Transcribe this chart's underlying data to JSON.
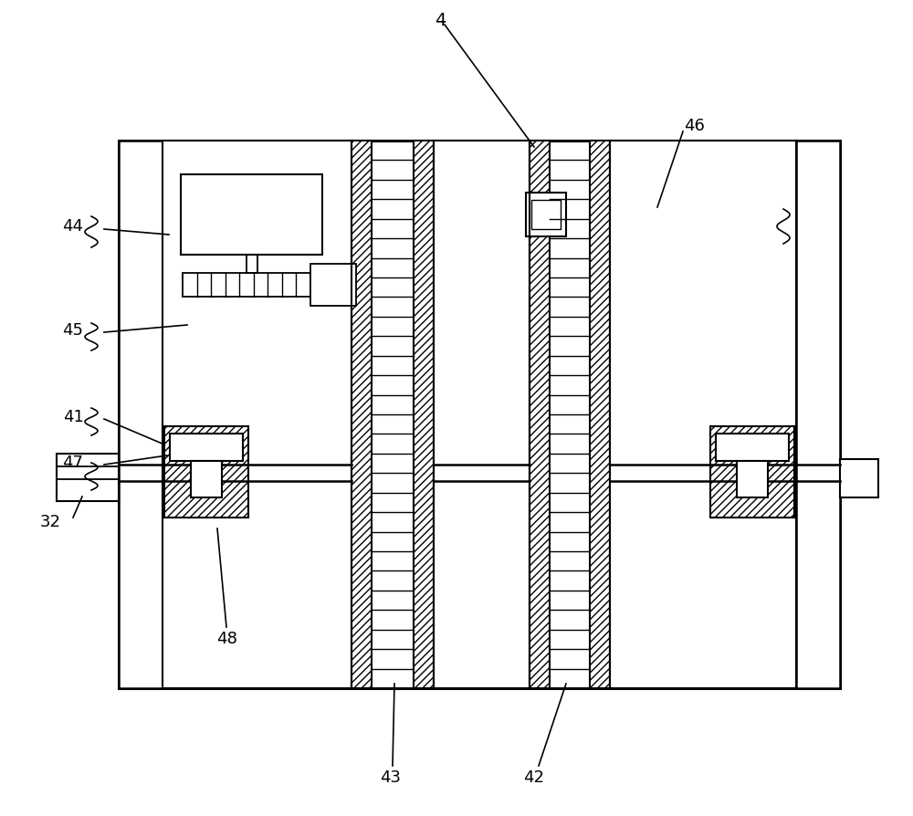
{
  "background_color": "#ffffff",
  "line_color": "#000000",
  "fig_w": 10.0,
  "fig_h": 8.95,
  "dpi": 100
}
